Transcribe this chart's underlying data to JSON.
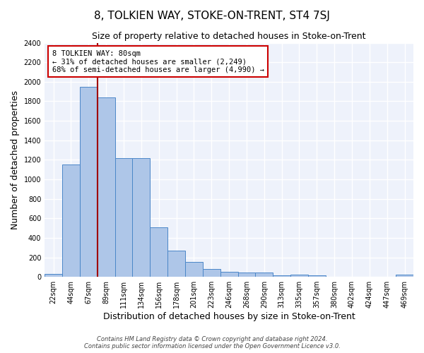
{
  "title": "8, TOLKIEN WAY, STOKE-ON-TRENT, ST4 7SJ",
  "subtitle": "Size of property relative to detached houses in Stoke-on-Trent",
  "xlabel": "Distribution of detached houses by size in Stoke-on-Trent",
  "ylabel": "Number of detached properties",
  "categories": [
    "22sqm",
    "44sqm",
    "67sqm",
    "89sqm",
    "111sqm",
    "134sqm",
    "156sqm",
    "178sqm",
    "201sqm",
    "223sqm",
    "246sqm",
    "268sqm",
    "290sqm",
    "313sqm",
    "335sqm",
    "357sqm",
    "380sqm",
    "402sqm",
    "424sqm",
    "447sqm",
    "469sqm"
  ],
  "values": [
    30,
    1150,
    1950,
    1840,
    1220,
    1220,
    510,
    270,
    155,
    80,
    50,
    45,
    45,
    18,
    20,
    14,
    0,
    0,
    0,
    0,
    20
  ],
  "bar_color": "#aec6e8",
  "bar_edge_color": "#4a86c8",
  "vline_color": "#a00000",
  "annotation_text": "8 TOLKIEN WAY: 80sqm\n← 31% of detached houses are smaller (2,249)\n68% of semi-detached houses are larger (4,990) →",
  "annotation_box_color": "#ffffff",
  "annotation_box_edge_color": "#cc0000",
  "ylim": [
    0,
    2400
  ],
  "yticks": [
    0,
    200,
    400,
    600,
    800,
    1000,
    1200,
    1400,
    1600,
    1800,
    2000,
    2200,
    2400
  ],
  "background_color": "#eef2fb",
  "grid_color": "#ffffff",
  "footer_line1": "Contains HM Land Registry data © Crown copyright and database right 2024.",
  "footer_line2": "Contains public sector information licensed under the Open Government Licence v3.0.",
  "title_fontsize": 11,
  "subtitle_fontsize": 9,
  "xlabel_fontsize": 9,
  "ylabel_fontsize": 9,
  "tick_fontsize": 7,
  "annotation_fontsize": 7.5,
  "footer_fontsize": 6
}
